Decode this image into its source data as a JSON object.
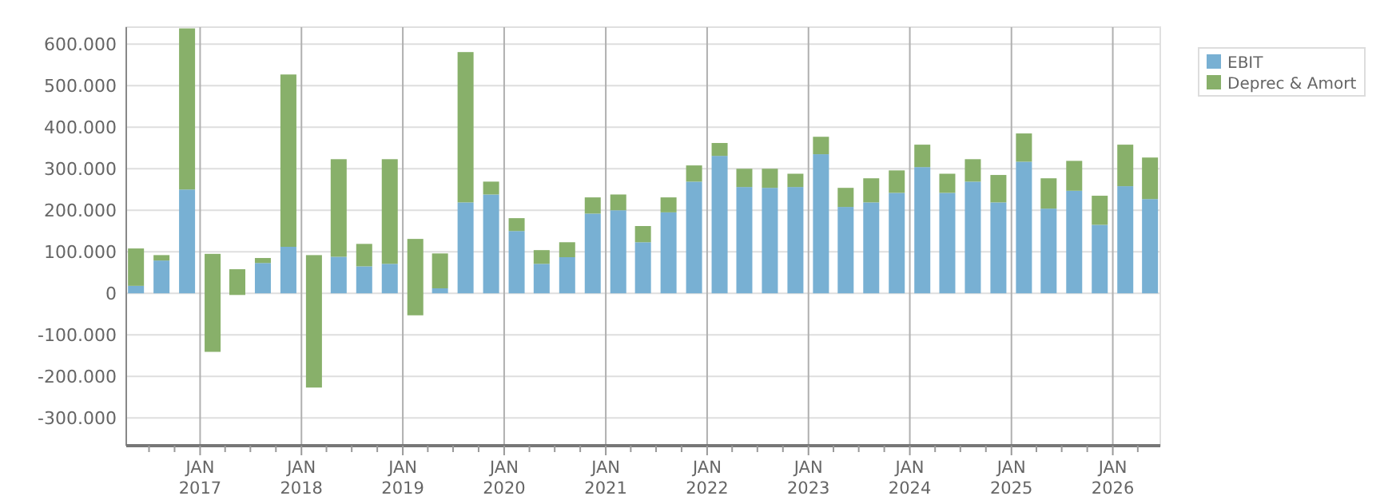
{
  "chart_data": {
    "type": "bar",
    "stacked": true,
    "grid": true,
    "legend": "top right",
    "x": [
      "2016-05-15",
      "2016-08-15",
      "2016-11-15",
      "2017-02-15",
      "2017-05-15",
      "2017-08-15",
      "2017-11-15",
      "2018-02-15",
      "2018-05-15",
      "2018-08-15",
      "2018-11-15",
      "2019-02-15",
      "2019-05-15",
      "2019-08-15",
      "2019-11-15",
      "2020-02-15",
      "2020-05-15",
      "2020-08-15",
      "2020-11-15",
      "2021-02-15",
      "2021-05-15",
      "2021-08-15",
      "2021-11-15",
      "2022-02-15",
      "2022-05-15",
      "2022-08-15",
      "2022-11-15",
      "2023-02-15",
      "2023-05-15",
      "2023-08-15",
      "2023-11-15",
      "2024-02-15",
      "2024-05-15",
      "2024-08-15",
      "2024-11-15",
      "2025-02-15",
      "2025-05-15",
      "2025-08-15",
      "2025-11-15",
      "2026-02-15",
      "2026-05-15"
    ],
    "xlim": [
      "2016-04-10",
      "2026-06-21"
    ],
    "xticks": [
      {
        "value": "2016-07-01",
        "label": null
      },
      {
        "value": "2016-10-01",
        "label": null
      },
      {
        "value": "2017-01-01",
        "label": "JAN 2017"
      },
      {
        "value": "2017-04-01",
        "label": null
      },
      {
        "value": "2017-07-01",
        "label": null
      },
      {
        "value": "2017-10-01",
        "label": null
      },
      {
        "value": "2018-01-01",
        "label": "JAN 2018"
      },
      {
        "value": "2018-04-01",
        "label": null
      },
      {
        "value": "2018-07-01",
        "label": null
      },
      {
        "value": "2018-10-01",
        "label": null
      },
      {
        "value": "2019-01-01",
        "label": "JAN 2019"
      },
      {
        "value": "2019-04-01",
        "label": null
      },
      {
        "value": "2019-07-01",
        "label": null
      },
      {
        "value": "2019-10-01",
        "label": null
      },
      {
        "value": "2020-01-01",
        "label": "JAN 2020"
      },
      {
        "value": "2020-04-01",
        "label": null
      },
      {
        "value": "2020-07-01",
        "label": null
      },
      {
        "value": "2020-10-01",
        "label": null
      },
      {
        "value": "2021-01-01",
        "label": "JAN 2021"
      },
      {
        "value": "2021-04-01",
        "label": null
      },
      {
        "value": "2021-07-01",
        "label": null
      },
      {
        "value": "2021-10-01",
        "label": null
      },
      {
        "value": "2022-01-01",
        "label": "JAN 2022"
      },
      {
        "value": "2022-04-01",
        "label": null
      },
      {
        "value": "2022-07-01",
        "label": null
      },
      {
        "value": "2022-10-01",
        "label": null
      },
      {
        "value": "2023-01-01",
        "label": "JAN 2023"
      },
      {
        "value": "2023-04-01",
        "label": null
      },
      {
        "value": "2023-07-01",
        "label": null
      },
      {
        "value": "2023-10-01",
        "label": null
      },
      {
        "value": "2024-01-01",
        "label": "JAN 2024"
      },
      {
        "value": "2024-04-01",
        "label": null
      },
      {
        "value": "2024-07-01",
        "label": null
      },
      {
        "value": "2024-10-01",
        "label": null
      },
      {
        "value": "2025-01-01",
        "label": "JAN 2025"
      },
      {
        "value": "2025-04-01",
        "label": null
      },
      {
        "value": "2025-07-01",
        "label": null
      },
      {
        "value": "2025-10-01",
        "label": null
      },
      {
        "value": "2026-01-01",
        "label": "JAN 2026"
      },
      {
        "value": "2026-04-01",
        "label": null
      }
    ],
    "ylim": [
      -367000,
      641000
    ],
    "yticks": [
      {
        "value": -300000,
        "label": "-300.000"
      },
      {
        "value": -200000,
        "label": "-200.000"
      },
      {
        "value": -100000,
        "label": "-100.000"
      },
      0,
      {
        "value": 100000,
        "label": "100.000"
      },
      {
        "value": 200000,
        "label": "200.000"
      },
      {
        "value": 300000,
        "label": "300.000"
      },
      {
        "value": 400000,
        "label": "400.000"
      },
      {
        "value": 500000,
        "label": "500.000"
      },
      {
        "value": 600000,
        "label": "600.000"
      }
    ],
    "series": [
      {
        "name": "EBIT",
        "color": "#78b0d3",
        "values": [
          18000,
          79000,
          250000,
          null,
          null,
          73000,
          112000,
          null,
          88000,
          65000,
          71000,
          null,
          12000,
          219000,
          238000,
          150000,
          71000,
          87000,
          192000,
          200000,
          123000,
          195000,
          269000,
          331000,
          256000,
          254000,
          256000,
          335000,
          208000,
          219000,
          242000,
          304000,
          242000,
          269000,
          219000,
          317000,
          204000,
          247000,
          165000,
          258000,
          227000
        ]
      },
      {
        "name": "Deprec & Amort",
        "color": "#88b06a",
        "base": [
          null,
          null,
          null,
          -141000,
          -4000,
          null,
          null,
          -227000,
          null,
          null,
          null,
          -53000,
          null,
          null,
          null,
          null,
          null,
          null,
          null,
          null,
          null,
          null,
          null,
          null,
          null,
          null,
          null,
          null,
          null,
          null,
          null,
          null,
          null,
          null,
          null,
          null,
          null,
          null,
          null,
          null,
          null
        ],
        "values": [
          90000,
          13000,
          388000,
          236000,
          62000,
          12000,
          415000,
          319000,
          235000,
          54000,
          252000,
          184000,
          84000,
          362000,
          31000,
          31000,
          33000,
          36000,
          39000,
          38000,
          39000,
          36000,
          39000,
          31000,
          44000,
          46000,
          32000,
          42000,
          46000,
          58000,
          54000,
          54000,
          46000,
          54000,
          66000,
          68000,
          73000,
          72000,
          70000,
          100000,
          100000
        ]
      }
    ]
  }
}
